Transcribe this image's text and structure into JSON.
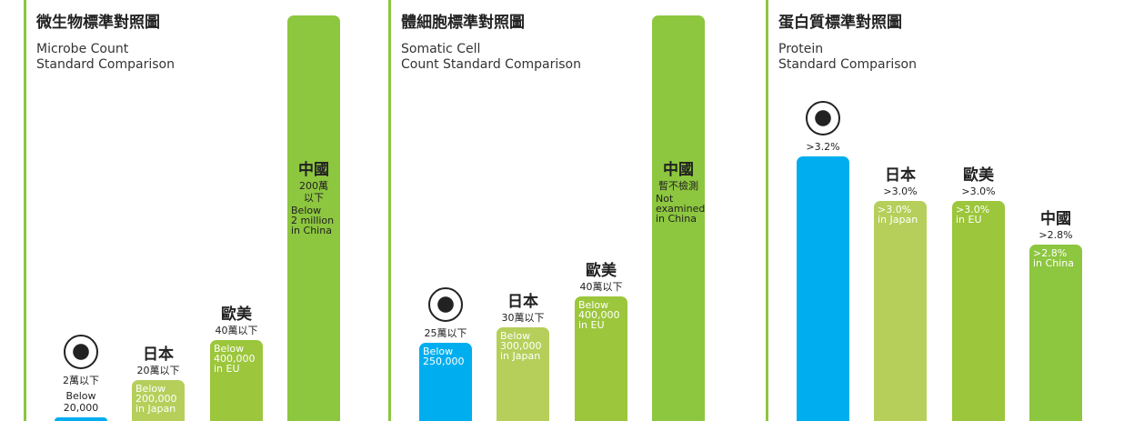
{
  "chart_data": [
    {
      "type": "bar",
      "title": "微生物標準對照圖",
      "subtitle": "Microbe Count\nStandard Comparison",
      "categories": [
        null,
        "日本",
        "歐美",
        "中國"
      ],
      "values": [
        20000,
        200000,
        400000,
        2000000
      ],
      "value_labels": [
        "2萬以下",
        "20萬以下",
        "40萬以下",
        "200萬\n以下"
      ],
      "notes": [
        "Below\n20,000",
        "Below\n200,000\nin Japan",
        "Below\n400,000\nin EU",
        "Below\n2 million\nin China"
      ],
      "colors": [
        "#00aeef",
        "#b5cf5a",
        "#9cc63b",
        "#8dc63f"
      ],
      "ylim": [
        0,
        2000000
      ]
    },
    {
      "type": "bar",
      "title": "體細胞標準對照圖",
      "subtitle": "Somatic Cell\nCount Standard Comparison",
      "categories": [
        null,
        "日本",
        "歐美",
        "中國"
      ],
      "values": [
        250000,
        300000,
        400000,
        null
      ],
      "value_labels": [
        "25萬以下",
        "30萬以下",
        "40萬以下",
        "暫不檢測"
      ],
      "notes": [
        "Below\n250,000",
        "Below\n300,000\nin Japan",
        "Below\n400,000\nin EU",
        "Not\nexamined\nin China"
      ],
      "colors": [
        "#00aeef",
        "#b5cf5a",
        "#9cc63b",
        "#8dc63f"
      ],
      "ylim": [
        0,
        1300000
      ]
    },
    {
      "type": "bar",
      "title": "蛋白質標準對照圖",
      "subtitle": "Protein\nStandard Comparison",
      "categories": [
        null,
        "日本",
        "歐美",
        "中國"
      ],
      "values": [
        3.2,
        3.0,
        3.0,
        2.8
      ],
      "value_labels": [
        ">3.2%",
        ">3.0%",
        ">3.0%",
        ">2.8%"
      ],
      "notes": [
        null,
        ">3.0%\nin Japan",
        ">3.0%\nin EU",
        ">2.8%\nin China"
      ],
      "colors": [
        "#00aeef",
        "#b5cf5a",
        "#9cc63b",
        "#8dc63f"
      ],
      "ylim": [
        2,
        3.84
      ]
    }
  ]
}
